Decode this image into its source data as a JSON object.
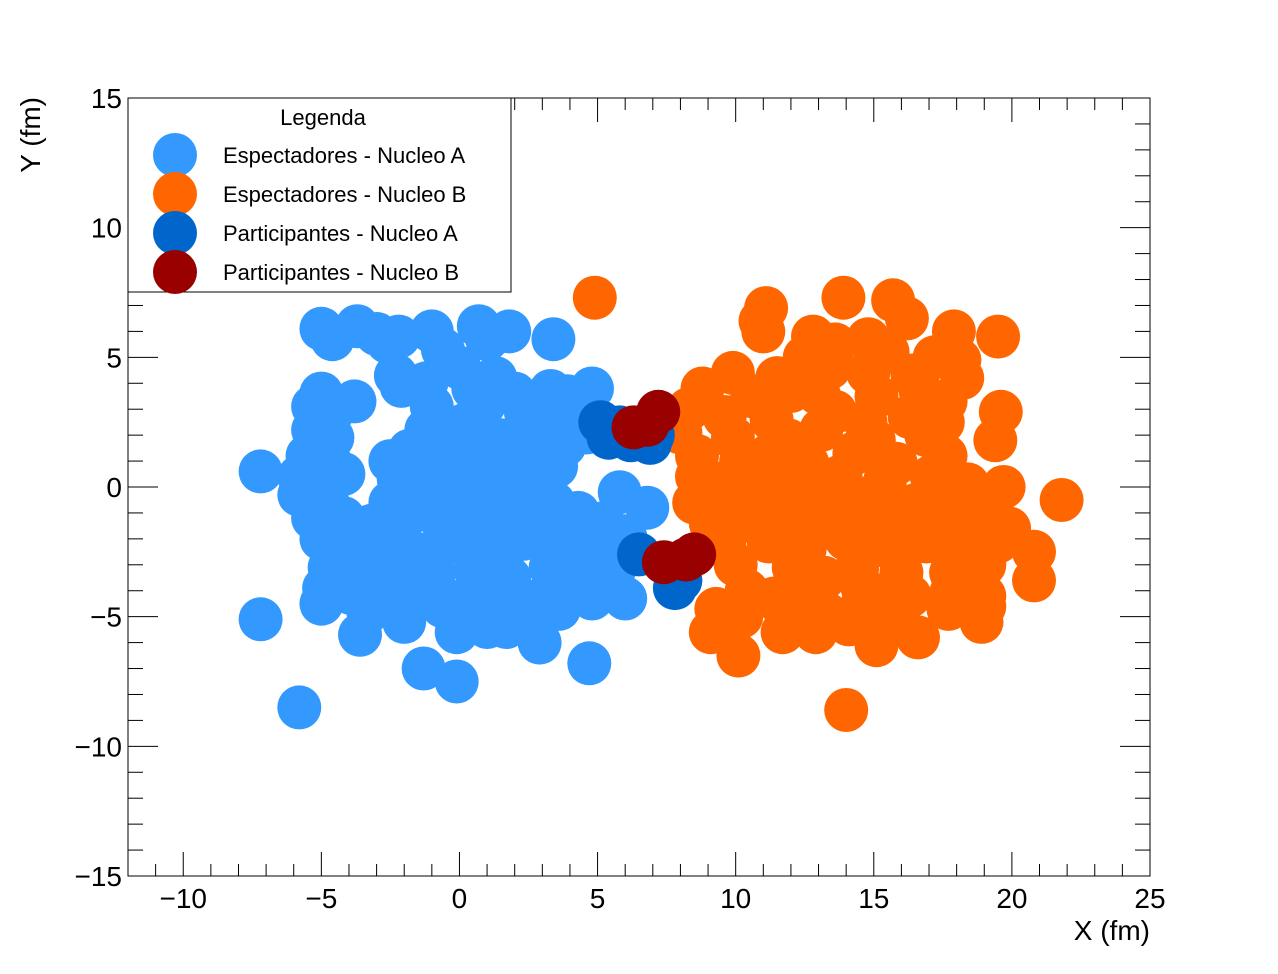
{
  "chart_data": {
    "type": "scatter",
    "xlabel": "X (fm)",
    "ylabel": "Y (fm)",
    "xlim": [
      -12,
      25
    ],
    "ylim": [
      -15,
      15
    ],
    "xticks": [
      -10,
      -5,
      0,
      5,
      10,
      15,
      20,
      25
    ],
    "yticks": [
      -15,
      -10,
      -5,
      0,
      5,
      10,
      15
    ],
    "grid": false,
    "legend": {
      "title": "Legenda",
      "position": "top-left"
    },
    "series": [
      {
        "name": "Espectadores - Nucleo A",
        "color": "#3399ff",
        "points": [
          [
            -5.0,
            6.1
          ],
          [
            -4.6,
            5.7
          ],
          [
            -3.7,
            6.2
          ],
          [
            -3.0,
            5.9
          ],
          [
            -2.6,
            5.6
          ],
          [
            -2.2,
            5.8
          ],
          [
            -1.0,
            6.0
          ],
          [
            -0.6,
            5.3
          ],
          [
            0.7,
            6.2
          ],
          [
            1.0,
            5.7
          ],
          [
            1.8,
            6.0
          ],
          [
            3.4,
            5.7
          ],
          [
            -2.3,
            4.3
          ],
          [
            -2.1,
            3.9
          ],
          [
            -1.2,
            4.0
          ],
          [
            0.0,
            4.6
          ],
          [
            0.5,
            3.8
          ],
          [
            1.3,
            4.2
          ],
          [
            2.0,
            3.6
          ],
          [
            3.3,
            3.7
          ],
          [
            3.9,
            3.5
          ],
          [
            4.8,
            3.8
          ],
          [
            -5.3,
            3.1
          ],
          [
            -5.0,
            3.6
          ],
          [
            -4.6,
            2.9
          ],
          [
            -3.8,
            3.3
          ],
          [
            -1.0,
            3.1
          ],
          [
            0.9,
            3.2
          ],
          [
            2.4,
            2.9
          ],
          [
            3.0,
            2.6
          ],
          [
            3.9,
            2.4
          ],
          [
            4.6,
            2.1
          ],
          [
            -5.3,
            2.2
          ],
          [
            -4.6,
            1.9
          ],
          [
            -1.2,
            2.2
          ],
          [
            -0.5,
            2.0
          ],
          [
            0.2,
            2.4
          ],
          [
            1.5,
            1.8
          ],
          [
            2.8,
            2.2
          ],
          [
            3.8,
            1.6
          ],
          [
            -5.5,
            1.2
          ],
          [
            -4.7,
            1.0
          ],
          [
            -2.5,
            1.0
          ],
          [
            -1.8,
            1.4
          ],
          [
            -0.7,
            1.5
          ],
          [
            0.4,
            1.1
          ],
          [
            1.6,
            0.8
          ],
          [
            2.6,
            1.3
          ],
          [
            3.5,
            0.8
          ],
          [
            -7.2,
            0.6
          ],
          [
            -5.8,
            0.4
          ],
          [
            -4.2,
            0.5
          ],
          [
            -2.2,
            0.3
          ],
          [
            -1.3,
            0.4
          ],
          [
            -0.2,
            0.5
          ],
          [
            1.0,
            0.2
          ],
          [
            2.1,
            0.4
          ],
          [
            3.0,
            0.1
          ],
          [
            -5.8,
            -0.3
          ],
          [
            -4.8,
            -0.5
          ],
          [
            -2.5,
            -0.6
          ],
          [
            -1.8,
            -0.3
          ],
          [
            -0.6,
            -0.6
          ],
          [
            0.8,
            -0.3
          ],
          [
            2.2,
            -0.8
          ],
          [
            3.4,
            -0.6
          ],
          [
            5.8,
            -0.2
          ],
          [
            -5.3,
            -1.2
          ],
          [
            -4.2,
            -1.2
          ],
          [
            -3.2,
            -1.5
          ],
          [
            -2.0,
            -1.2
          ],
          [
            -0.8,
            -1.1
          ],
          [
            0.4,
            -1.4
          ],
          [
            1.6,
            -1.3
          ],
          [
            3.0,
            -1.2
          ],
          [
            4.3,
            -1.0
          ],
          [
            5.2,
            -1.4
          ],
          [
            6.8,
            -0.8
          ],
          [
            -5.0,
            -2.0
          ],
          [
            -3.8,
            -2.3
          ],
          [
            -2.6,
            -2.1
          ],
          [
            -1.4,
            -2.6
          ],
          [
            -0.2,
            -2.1
          ],
          [
            1.2,
            -2.3
          ],
          [
            2.3,
            -2.0
          ],
          [
            3.8,
            -2.3
          ],
          [
            5.0,
            -2.1
          ],
          [
            6.0,
            -1.9
          ],
          [
            -4.7,
            -3.1
          ],
          [
            -3.4,
            -3.4
          ],
          [
            -2.2,
            -3.0
          ],
          [
            -0.9,
            -3.3
          ],
          [
            0.6,
            -3.2
          ],
          [
            1.8,
            -3.5
          ],
          [
            3.3,
            -3.1
          ],
          [
            4.6,
            -3.3
          ],
          [
            5.6,
            -3.2
          ],
          [
            -4.9,
            -3.9
          ],
          [
            -3.9,
            -4.1
          ],
          [
            -2.6,
            -4.3
          ],
          [
            -1.2,
            -4.0
          ],
          [
            0.3,
            -4.3
          ],
          [
            1.5,
            -4.1
          ],
          [
            2.8,
            -4.4
          ],
          [
            4.1,
            -3.9
          ],
          [
            4.8,
            -4.2
          ],
          [
            -5.0,
            -4.5
          ],
          [
            -3.3,
            -4.8
          ],
          [
            -2.0,
            -5.0
          ],
          [
            -0.6,
            -4.6
          ],
          [
            0.8,
            -4.8
          ],
          [
            2.3,
            -4.9
          ],
          [
            3.6,
            -4.7
          ],
          [
            4.8,
            -4.3
          ],
          [
            6.0,
            -4.3
          ],
          [
            -7.2,
            -5.1
          ],
          [
            -3.6,
            -5.7
          ],
          [
            -2.0,
            -5.2
          ],
          [
            -0.1,
            -5.6
          ],
          [
            1.0,
            -5.4
          ],
          [
            1.7,
            -5.4
          ],
          [
            2.9,
            -6.0
          ],
          [
            4.7,
            -6.8
          ],
          [
            -1.3,
            -7.0
          ],
          [
            -0.1,
            -7.5
          ],
          [
            -5.8,
            -8.5
          ]
        ]
      },
      {
        "name": "Espectadores - Nucleo B",
        "color": "#ff6600",
        "points": [
          [
            4.9,
            7.3
          ],
          [
            11.1,
            6.9
          ],
          [
            10.9,
            6.4
          ],
          [
            13.9,
            7.3
          ],
          [
            15.7,
            7.2
          ],
          [
            16.2,
            6.5
          ],
          [
            11.0,
            6.0
          ],
          [
            12.8,
            5.8
          ],
          [
            14.8,
            5.7
          ],
          [
            17.9,
            6.0
          ],
          [
            19.5,
            5.8
          ],
          [
            12.5,
            5.0
          ],
          [
            13.6,
            5.5
          ],
          [
            15.5,
            5.2
          ],
          [
            17.2,
            5.0
          ],
          [
            18.1,
            4.9
          ],
          [
            9.9,
            4.4
          ],
          [
            11.5,
            4.2
          ],
          [
            13.4,
            4.6
          ],
          [
            14.8,
            4.4
          ],
          [
            16.4,
            4.3
          ],
          [
            18.2,
            4.2
          ],
          [
            8.8,
            3.8
          ],
          [
            10.6,
            3.5
          ],
          [
            12.0,
            3.7
          ],
          [
            13.0,
            3.6
          ],
          [
            15.1,
            3.5
          ],
          [
            16.7,
            3.7
          ],
          [
            17.6,
            3.3
          ],
          [
            8.3,
            3.0
          ],
          [
            9.6,
            2.7
          ],
          [
            11.3,
            2.6
          ],
          [
            13.6,
            2.9
          ],
          [
            14.7,
            2.5
          ],
          [
            16.3,
            2.7
          ],
          [
            17.5,
            2.5
          ],
          [
            19.6,
            2.9
          ],
          [
            8.0,
            2.1
          ],
          [
            9.9,
            1.9
          ],
          [
            11.9,
            1.8
          ],
          [
            13.1,
            2.2
          ],
          [
            15.0,
            1.8
          ],
          [
            16.9,
            2.0
          ],
          [
            19.4,
            1.8
          ],
          [
            8.6,
            1.2
          ],
          [
            10.2,
            1.0
          ],
          [
            11.3,
            1.3
          ],
          [
            12.6,
            0.9
          ],
          [
            14.3,
            1.3
          ],
          [
            15.8,
            0.9
          ],
          [
            17.6,
            1.2
          ],
          [
            8.6,
            0.4
          ],
          [
            9.7,
            0.2
          ],
          [
            11.0,
            0.5
          ],
          [
            12.4,
            0.1
          ],
          [
            13.8,
            0.4
          ],
          [
            15.4,
            0.2
          ],
          [
            17.1,
            0.4
          ],
          [
            18.4,
            0.1
          ],
          [
            19.7,
            0.0
          ],
          [
            8.5,
            -0.6
          ],
          [
            9.5,
            -0.5
          ],
          [
            10.8,
            -0.8
          ],
          [
            12.1,
            -0.3
          ],
          [
            13.5,
            -0.8
          ],
          [
            14.9,
            -0.4
          ],
          [
            16.5,
            -0.7
          ],
          [
            18.0,
            -0.6
          ],
          [
            19.1,
            -0.3
          ],
          [
            21.8,
            -0.5
          ],
          [
            9.1,
            -1.4
          ],
          [
            10.5,
            -1.3
          ],
          [
            11.9,
            -1.6
          ],
          [
            13.2,
            -1.2
          ],
          [
            14.7,
            -1.5
          ],
          [
            16.0,
            -1.1
          ],
          [
            17.4,
            -1.4
          ],
          [
            18.8,
            -1.3
          ],
          [
            19.9,
            -1.6
          ],
          [
            9.6,
            -2.3
          ],
          [
            11.2,
            -2.1
          ],
          [
            12.5,
            -2.4
          ],
          [
            14.0,
            -2.0
          ],
          [
            15.5,
            -2.3
          ],
          [
            16.9,
            -2.1
          ],
          [
            18.1,
            -2.5
          ],
          [
            19.5,
            -2.1
          ],
          [
            20.8,
            -2.5
          ],
          [
            10.0,
            -3.0
          ],
          [
            12.1,
            -3.1
          ],
          [
            13.2,
            -3.5
          ],
          [
            14.4,
            -3.1
          ],
          [
            16.0,
            -3.3
          ],
          [
            17.8,
            -3.3
          ],
          [
            19.0,
            -3.0
          ],
          [
            20.8,
            -3.6
          ],
          [
            10.4,
            -4.0
          ],
          [
            11.4,
            -4.3
          ],
          [
            12.8,
            -4.0
          ],
          [
            14.6,
            -3.9
          ],
          [
            16.3,
            -4.2
          ],
          [
            17.8,
            -4.1
          ],
          [
            19.0,
            -4.2
          ],
          [
            9.3,
            -4.7
          ],
          [
            10.2,
            -5.0
          ],
          [
            11.8,
            -4.8
          ],
          [
            13.3,
            -4.9
          ],
          [
            14.6,
            -4.5
          ],
          [
            15.3,
            -4.4
          ],
          [
            17.7,
            -4.7
          ],
          [
            19.0,
            -4.6
          ],
          [
            9.1,
            -5.6
          ],
          [
            11.7,
            -5.6
          ],
          [
            12.9,
            -5.6
          ],
          [
            14.1,
            -5.3
          ],
          [
            15.6,
            -5.2
          ],
          [
            16.6,
            -5.8
          ],
          [
            18.9,
            -5.2
          ],
          [
            10.1,
            -6.5
          ],
          [
            15.1,
            -6.1
          ],
          [
            14.0,
            -8.6
          ]
        ]
      },
      {
        "name": "Participantes - Nucleo A",
        "color": "#0066cc",
        "points": [
          [
            5.1,
            2.5
          ],
          [
            5.4,
            1.9
          ],
          [
            5.8,
            2.3
          ],
          [
            6.2,
            1.8
          ],
          [
            6.6,
            2.1
          ],
          [
            6.9,
            1.7
          ],
          [
            7.0,
            2.0
          ],
          [
            6.5,
            -2.6
          ],
          [
            7.8,
            -3.9
          ],
          [
            8.0,
            -3.6
          ]
        ]
      },
      {
        "name": "Participantes - Nucleo B",
        "color": "#990000",
        "points": [
          [
            6.3,
            2.3
          ],
          [
            6.8,
            2.4
          ],
          [
            7.2,
            2.9
          ],
          [
            7.4,
            -2.9
          ],
          [
            8.2,
            -2.8
          ],
          [
            8.5,
            -2.6
          ]
        ]
      }
    ]
  }
}
